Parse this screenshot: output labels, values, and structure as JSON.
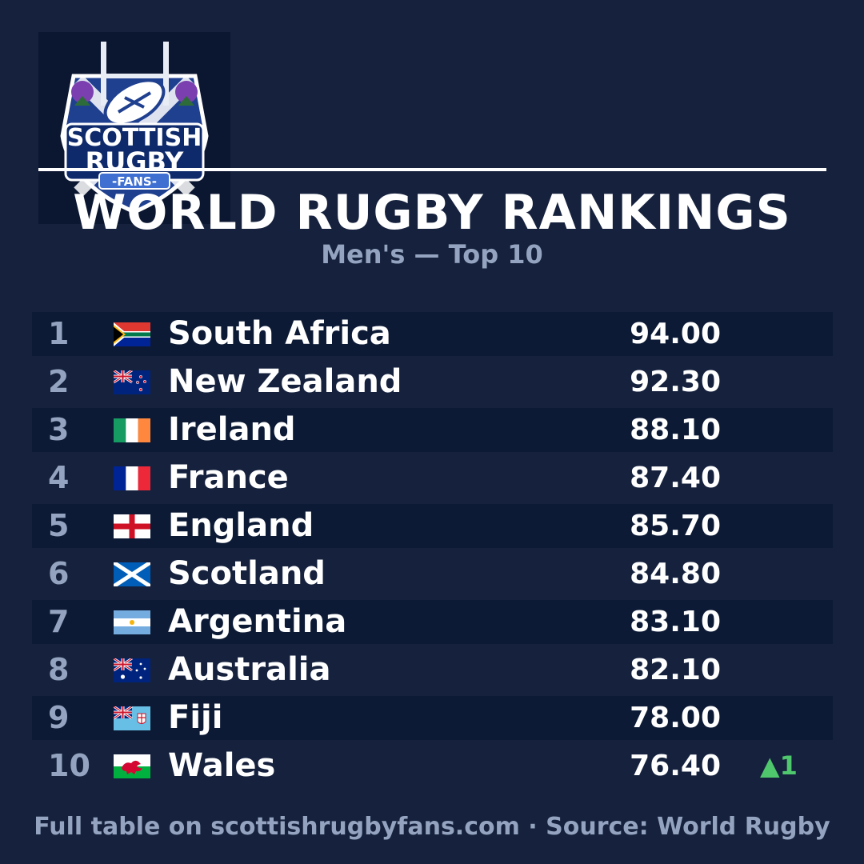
{
  "logo": {
    "line1": "SCOTTISH",
    "line2": "RUGBY",
    "line3": "-FANS-"
  },
  "header": {
    "title": "WORLD RUGBY RANKINGS",
    "subtitle": "Men's — Top 10"
  },
  "rankings": [
    {
      "rank": "1",
      "team": "South Africa",
      "points": "94.00",
      "flag": "flag-south-africa-icon",
      "movement": ""
    },
    {
      "rank": "2",
      "team": "New Zealand",
      "points": "92.30",
      "flag": "flag-new-zealand-icon",
      "movement": ""
    },
    {
      "rank": "3",
      "team": "Ireland",
      "points": "88.10",
      "flag": "flag-ireland-icon",
      "movement": ""
    },
    {
      "rank": "4",
      "team": "France",
      "points": "87.40",
      "flag": "flag-france-icon",
      "movement": ""
    },
    {
      "rank": "5",
      "team": "England",
      "points": "85.70",
      "flag": "flag-england-icon",
      "movement": ""
    },
    {
      "rank": "6",
      "team": "Scotland",
      "points": "84.80",
      "flag": "flag-scotland-icon",
      "movement": ""
    },
    {
      "rank": "7",
      "team": "Argentina",
      "points": "83.10",
      "flag": "flag-argentina-icon",
      "movement": ""
    },
    {
      "rank": "8",
      "team": "Australia",
      "points": "82.10",
      "flag": "flag-australia-icon",
      "movement": ""
    },
    {
      "rank": "9",
      "team": "Fiji",
      "points": "78.00",
      "flag": "flag-fiji-icon",
      "movement": ""
    },
    {
      "rank": "10",
      "team": "Wales",
      "points": "76.40",
      "flag": "flag-wales-icon",
      "movement": "▲1"
    }
  ],
  "footer": "Full table on scottishrugbyfans.com · Source: World Rugby",
  "colors": {
    "background": "#15213d",
    "row_shade": "#0c1a35",
    "muted_text": "#94a3bf",
    "rise": "#4fc76c"
  }
}
